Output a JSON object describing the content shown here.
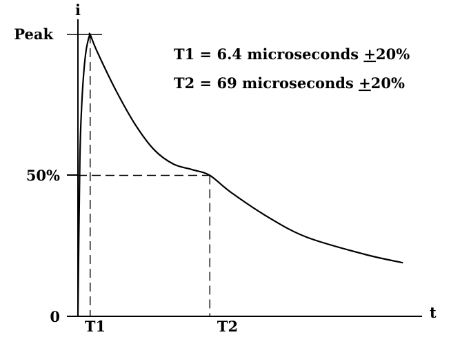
{
  "chart_data": {
    "type": "line",
    "xlabel": "t",
    "ylabel": "i",
    "y_ticks": [
      {
        "label": "Peak",
        "value": 100
      },
      {
        "label": "50%",
        "value": 50
      },
      {
        "label": "0",
        "value": 0
      }
    ],
    "x_ticks": [
      {
        "label": "T1",
        "value": 6.4
      },
      {
        "label": "T2",
        "value": 69
      }
    ],
    "xlim": [
      0,
      180
    ],
    "ylim": [
      0,
      100
    ],
    "annotations": [
      {
        "prefix": "T1 = 6.4 microseconds ",
        "pm": "+",
        "suffix": "20%"
      },
      {
        "prefix": "T2 = 69 microseconds ",
        "pm": "+",
        "suffix": "20%"
      }
    ],
    "series": [
      {
        "x": [
          0,
          1,
          2,
          3,
          4,
          5,
          6,
          6.4,
          10,
          20,
          30,
          40,
          50,
          60,
          69,
          80,
          100,
          120,
          150,
          170
        ],
        "values": [
          0,
          55,
          75,
          86,
          93,
          97,
          99.5,
          100,
          94,
          80,
          68,
          59,
          54,
          52,
          50,
          44,
          35,
          28,
          22,
          19
        ]
      }
    ],
    "guides": [
      {
        "kind": "horizontal-dash",
        "y": 50,
        "x_to": 69
      },
      {
        "kind": "vertical-dash",
        "x": 69,
        "y_to": 50
      },
      {
        "kind": "vertical-dash",
        "x": 6.4,
        "y_to": 100
      }
    ]
  }
}
